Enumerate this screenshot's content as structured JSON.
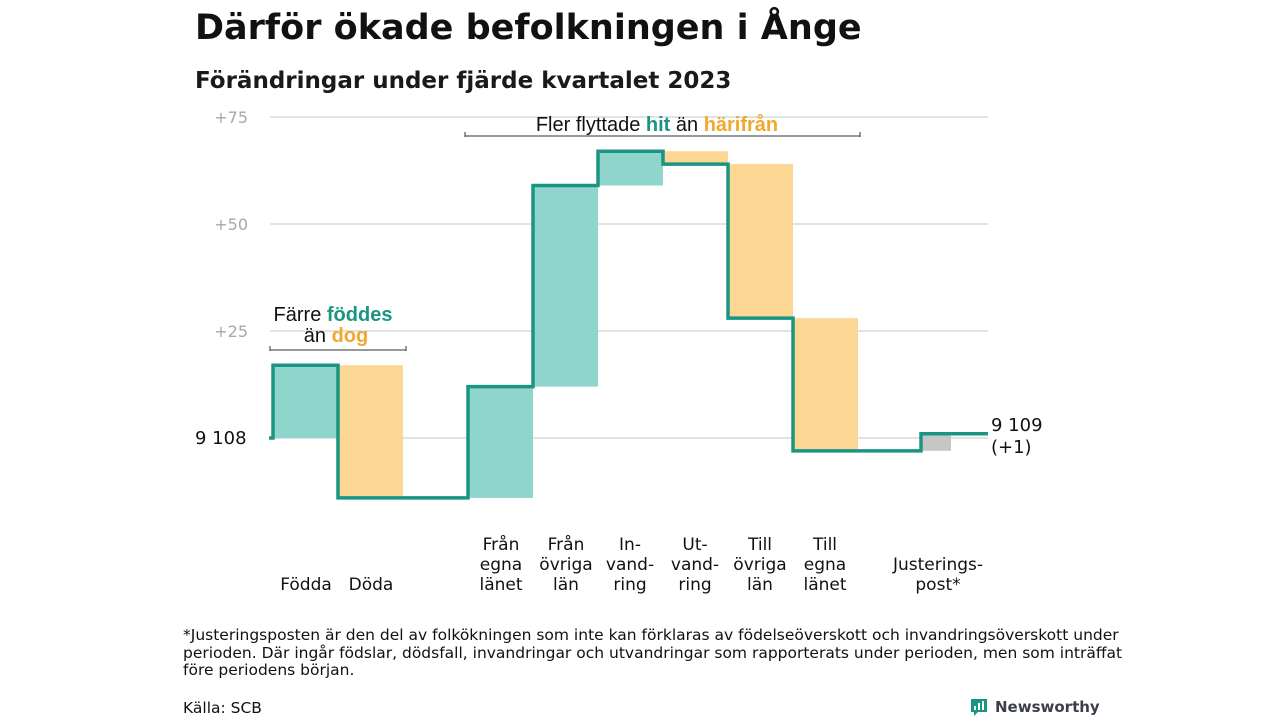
{
  "header": {
    "title": "Därför ökade befolkningen i Ånge",
    "subtitle": "Förändringar under fjärde kvartalet 2023"
  },
  "chart_data": {
    "type": "waterfall",
    "title": "Därför ökade befolkningen i Ånge",
    "subtitle": "Förändringar under fjärde kvartalet 2023",
    "ylim": [
      -15,
      75
    ],
    "yticks": [
      {
        "value": 25,
        "label": "+25"
      },
      {
        "value": 50,
        "label": "+50"
      },
      {
        "value": 75,
        "label": "+75"
      }
    ],
    "grid": true,
    "baseline": {
      "value": 0,
      "label": "9  108"
    },
    "end_label": {
      "line1": "9 109",
      "line2": "(+1)"
    },
    "steps": [
      {
        "label": [
          "Födda"
        ],
        "start": 0,
        "end": 17,
        "kind": "hit"
      },
      {
        "label": [
          "Döda"
        ],
        "start": 17,
        "end": -14,
        "kind": "harifran"
      },
      {
        "label": [
          "Från",
          "egna",
          "länet"
        ],
        "start": -14,
        "end": 12,
        "kind": "hit"
      },
      {
        "label": [
          "Från",
          "övriga",
          "län"
        ],
        "start": 12,
        "end": 59,
        "kind": "hit"
      },
      {
        "label": [
          "In-",
          "vand-",
          "ring"
        ],
        "start": 59,
        "end": 67,
        "kind": "hit"
      },
      {
        "label": [
          "Ut-",
          "vand-",
          "ring"
        ],
        "start": 67,
        "end": 64,
        "kind": "harifran"
      },
      {
        "label": [
          "Till",
          "övriga",
          "län"
        ],
        "start": 64,
        "end": 28,
        "kind": "harifran"
      },
      {
        "label": [
          "Till",
          "egna",
          "länet"
        ],
        "start": 28,
        "end": -3,
        "kind": "harifran"
      },
      {
        "label": [
          "Justerings-",
          "post*"
        ],
        "start": -3,
        "end": 1,
        "kind": "adjust"
      }
    ],
    "annotations": [
      {
        "segments": [
          {
            "text": "Färre ",
            "style": "plain"
          },
          {
            "text": "föddes",
            "style": "hit"
          }
        ],
        "line2": [
          {
            "text": "än ",
            "style": "plain"
          },
          {
            "text": "dog",
            "style": "harifran"
          }
        ]
      },
      {
        "segments": [
          {
            "text": "Fler flyttade ",
            "style": "plain"
          },
          {
            "text": "hit",
            "style": "hit"
          },
          {
            "text": "  än ",
            "style": "plain"
          },
          {
            "text": "härifrån",
            "style": "harifran"
          }
        ]
      }
    ],
    "colors": {
      "hit_fill": "#8fd5cb",
      "harifran_fill": "#fcd794",
      "adjust_fill": "#c6c6c6",
      "line": "#1a9584",
      "hit_text": "#1a9584",
      "harifran_text": "#f0a82e",
      "grid": "#d9d9d9",
      "tick_text": "#a8a8a8"
    }
  },
  "footnote": "*Justeringsposten är den del av folkökningen som inte kan förklaras av födelseöverskott och invandringsöverskott under perioden. Där ingår födslar, dödsfall, invandringar och utvandringar som rapporterats under perioden, men som inträffat före periodens början.",
  "source": "Källa: SCB",
  "logo": {
    "text": "Newsworthy",
    "icon": "newsworthy-logo-icon"
  }
}
